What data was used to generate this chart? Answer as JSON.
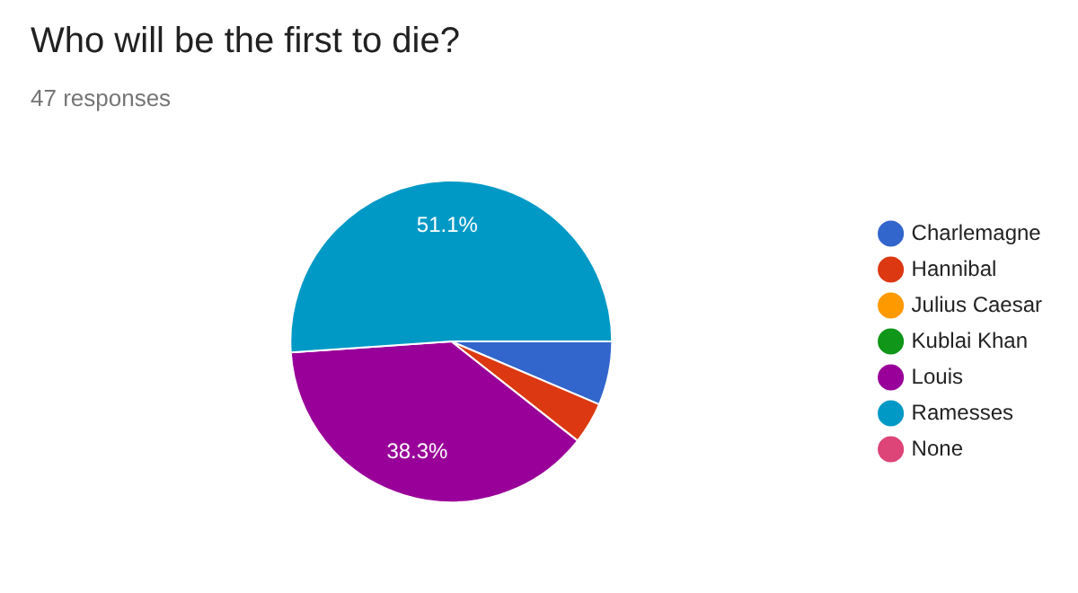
{
  "chart_data": {
    "type": "pie",
    "title": "Who will be the first to die?",
    "subtitle": "47 responses",
    "categories": [
      "Charlemagne",
      "Hannibal",
      "Julius Caesar",
      "Kublai Khan",
      "Louis",
      "Ramesses",
      "None"
    ],
    "values": [
      6.4,
      4.2,
      0,
      0,
      38.3,
      51.1,
      0
    ],
    "colors": [
      "#3366cc",
      "#dc3912",
      "#ff9900",
      "#109618",
      "#990099",
      "#0099c6",
      "#dd4477"
    ],
    "value_labels": [
      null,
      null,
      null,
      null,
      "38.3%",
      "51.1%",
      null
    ],
    "legend": "right"
  }
}
